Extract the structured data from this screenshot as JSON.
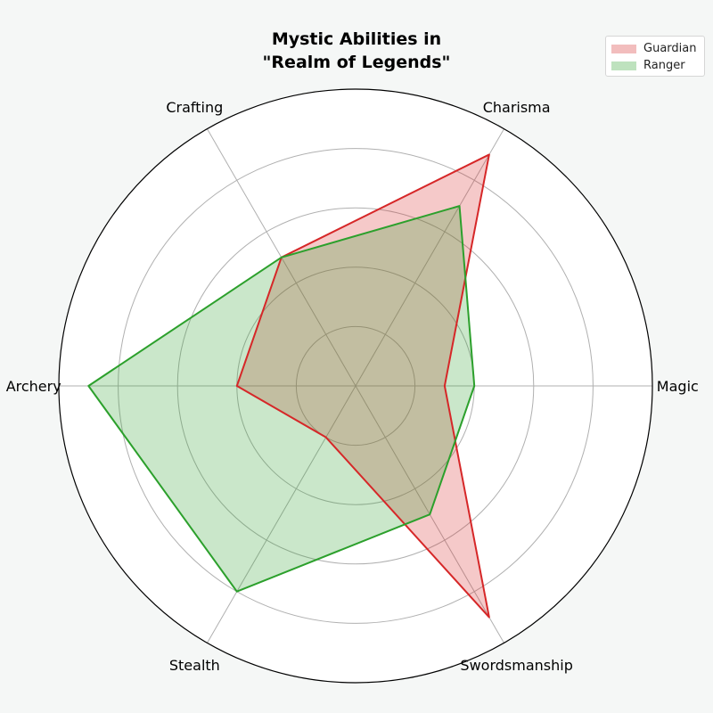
{
  "chart_data": {
    "type": "radar",
    "title_lines": [
      "Mystic Abilities in",
      "\"Realm of Legends\""
    ],
    "categories": [
      "Magic",
      "Charisma",
      "Crafting",
      "Archery",
      "Stealth",
      "Swordsmanship"
    ],
    "rmax": 10,
    "ring_values": [
      2,
      4,
      6,
      8,
      10
    ],
    "grid": true,
    "legend_position": "top-right",
    "series": [
      {
        "name": "Guardian",
        "values": [
          3,
          9,
          5,
          4,
          2,
          9.0
        ],
        "color": "#d62728"
      },
      {
        "name": "Ranger",
        "values": [
          4,
          7,
          5,
          9,
          8,
          5.0
        ],
        "color": "#2ca02c"
      }
    ]
  }
}
